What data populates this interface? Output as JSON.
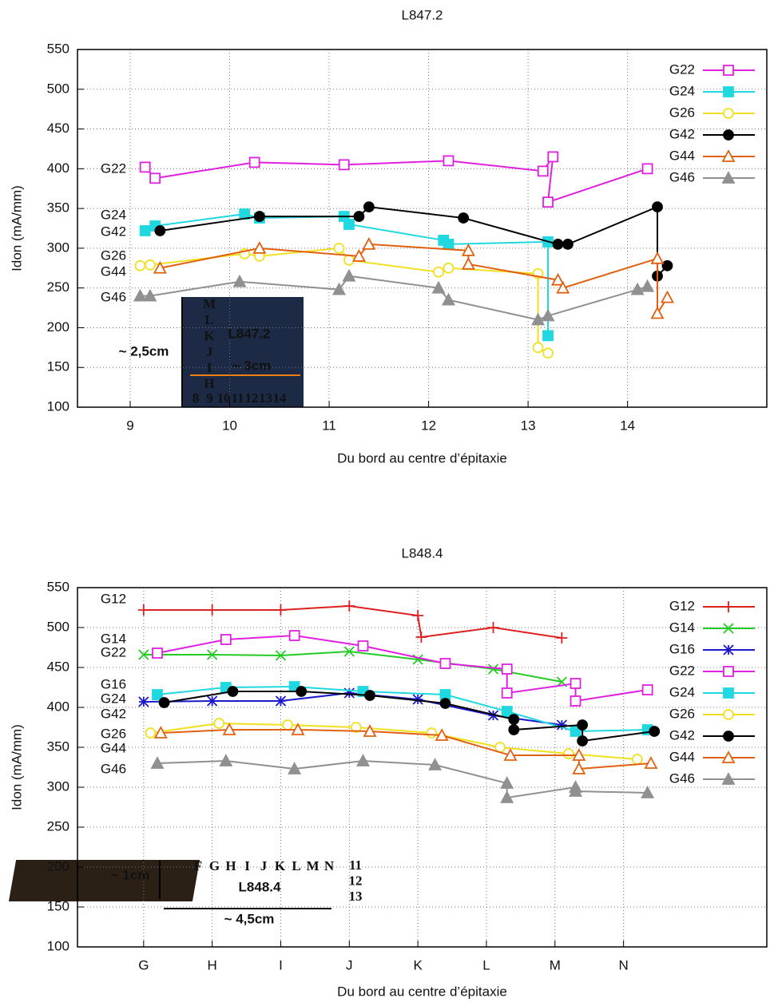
{
  "chart_data": [
    {
      "type": "line",
      "title": "L847.2",
      "x_label": "Du bord au centre d’épitaxie",
      "y_label": "Idon (mA/mm)",
      "xlim": [
        8.47,
        15.4
      ],
      "ylim": [
        100,
        550
      ],
      "xticks": [
        9,
        10,
        11,
        12,
        13,
        14
      ],
      "yticks": [
        100,
        150,
        200,
        250,
        300,
        350,
        400,
        450,
        500,
        550
      ],
      "grid": true,
      "legend": "upper right",
      "annotations": [
        "G22",
        "G24",
        "G42",
        "G26",
        "G44",
        "G46"
      ],
      "inset": {
        "letters": [
          "M",
          "L",
          "K",
          "J",
          "I",
          "H"
        ],
        "numbers": [
          "8",
          "9",
          "10",
          "11",
          "12",
          "13",
          "14"
        ],
        "name": "L847.2",
        "height_label": "~ 2,5cm",
        "width_label": "~ 3cm"
      },
      "series": [
        {
          "name": "G22",
          "color": "#e020e0",
          "marker": "square-open",
          "x": [
            9.15,
            9.25,
            10.25,
            11.15,
            12.2,
            13.15,
            13.25,
            13.2,
            14.2
          ],
          "values": [
            402,
            388,
            408,
            405,
            410,
            397,
            415,
            358,
            400
          ]
        },
        {
          "name": "G24",
          "color": "#20d8e0",
          "marker": "square",
          "x": [
            9.15,
            9.25,
            10.15,
            10.3,
            11.15,
            11.2,
            12.15,
            12.2,
            13.2,
            13.2
          ],
          "values": [
            322,
            328,
            343,
            338,
            340,
            330,
            310,
            305,
            308,
            190
          ]
        },
        {
          "name": "G26",
          "color": "#f0e020",
          "marker": "circle-open",
          "x": [
            9.1,
            9.2,
            10.15,
            10.3,
            11.1,
            11.2,
            12.1,
            12.2,
            13.1,
            13.1,
            13.2
          ],
          "values": [
            278,
            279,
            293,
            290,
            300,
            285,
            270,
            275,
            268,
            175,
            168
          ]
        },
        {
          "name": "G42",
          "color": "#000000",
          "marker": "circle",
          "x": [
            9.3,
            10.3,
            11.3,
            11.4,
            12.35,
            13.3,
            13.4,
            14.3,
            14.3,
            14.4
          ],
          "values": [
            322,
            340,
            340,
            352,
            338,
            305,
            305,
            352,
            265,
            278
          ]
        },
        {
          "name": "G44",
          "color": "#e06010",
          "marker": "triangle-open",
          "x": [
            9.3,
            10.3,
            11.3,
            11.4,
            12.4,
            12.4,
            13.3,
            13.35,
            14.3,
            14.3,
            14.4
          ],
          "values": [
            275,
            300,
            290,
            305,
            297,
            280,
            260,
            250,
            287,
            218,
            238
          ]
        },
        {
          "name": "G46",
          "color": "#909090",
          "marker": "triangle",
          "x": [
            9.1,
            9.2,
            10.1,
            11.1,
            11.2,
            12.1,
            12.2,
            13.1,
            13.2,
            14.1,
            14.2
          ],
          "values": [
            240,
            240,
            258,
            248,
            265,
            250,
            235,
            210,
            215,
            248,
            252
          ]
        }
      ]
    },
    {
      "type": "line",
      "title": "L848.4",
      "x_label": "Du bord au centre d’épitaxie",
      "y_label": "Idon (mA/mm)",
      "xlim": [
        0.035,
        10.09
      ],
      "ylim": [
        100,
        550
      ],
      "xticks": [
        {
          "value": 1,
          "label": "G"
        },
        {
          "value": 2,
          "label": "H"
        },
        {
          "value": 3,
          "label": "I"
        },
        {
          "value": 4,
          "label": "J"
        },
        {
          "value": 5,
          "label": "K"
        },
        {
          "value": 6,
          "label": "L"
        },
        {
          "value": 7,
          "label": "M"
        },
        {
          "value": 8,
          "label": "N"
        }
      ],
      "yticks": [
        100,
        150,
        200,
        250,
        300,
        350,
        400,
        450,
        500,
        550
      ],
      "grid": true,
      "legend": "upper right",
      "annotations": [
        "G12",
        "G14",
        "G22",
        "G16",
        "G24",
        "G42",
        "G26",
        "G44",
        "G46"
      ],
      "inset": {
        "letters": [
          "F",
          "G",
          "H",
          "I",
          "J",
          "K",
          "L",
          "M",
          "N"
        ],
        "numbers": [
          "11",
          "12",
          "13"
        ],
        "name": "L848.4",
        "height_label": "~ 1cm",
        "width_label": "~ 4,5cm"
      },
      "series": [
        {
          "name": "G12",
          "color": "#dd2020",
          "marker": "plus",
          "x": [
            1,
            2,
            3,
            4,
            5,
            5.05,
            6.1,
            7.1
          ],
          "values": [
            522,
            522,
            522,
            527,
            515,
            488,
            500,
            487
          ]
        },
        {
          "name": "G14",
          "color": "#22cc22",
          "marker": "cross",
          "x": [
            1,
            2,
            3,
            4,
            5,
            6.1,
            7.1
          ],
          "values": [
            466,
            466,
            465,
            470,
            460,
            448,
            432
          ]
        },
        {
          "name": "G16",
          "color": "#1a1acc",
          "marker": "star",
          "x": [
            1,
            2,
            3,
            4,
            5,
            6.1,
            7.1
          ],
          "values": [
            407,
            408,
            408,
            418,
            410,
            390,
            378
          ]
        },
        {
          "name": "G22",
          "color": "#e020e0",
          "marker": "square-open",
          "x": [
            1.2,
            2.2,
            3.2,
            4.2,
            5.4,
            6.3,
            6.3,
            7.3,
            7.3,
            8.35
          ],
          "values": [
            468,
            485,
            490,
            477,
            455,
            448,
            418,
            430,
            408,
            422
          ]
        },
        {
          "name": "G24",
          "color": "#20d8e0",
          "marker": "square",
          "x": [
            1.2,
            2.2,
            3.2,
            4.2,
            5.4,
            6.3,
            7.3,
            8.35
          ],
          "values": [
            416,
            425,
            426,
            420,
            416,
            395,
            370,
            372
          ]
        },
        {
          "name": "G26",
          "color": "#f0e020",
          "marker": "circle-open",
          "x": [
            1.1,
            2.1,
            3.1,
            4.1,
            5.2,
            6.2,
            7.2,
            8.2
          ],
          "values": [
            368,
            380,
            378,
            375,
            368,
            350,
            342,
            335
          ]
        },
        {
          "name": "G42",
          "color": "#000000",
          "marker": "circle",
          "x": [
            1.3,
            2.3,
            3.3,
            4.3,
            5.4,
            6.4,
            6.4,
            7.4,
            7.4,
            8.45
          ],
          "values": [
            406,
            420,
            420,
            415,
            405,
            385,
            372,
            378,
            358,
            370
          ]
        },
        {
          "name": "G44",
          "color": "#e06010",
          "marker": "triangle-open",
          "x": [
            1.25,
            2.25,
            3.25,
            4.3,
            5.35,
            6.35,
            7.35,
            7.35,
            8.4
          ],
          "values": [
            368,
            372,
            372,
            370,
            365,
            340,
            340,
            323,
            330
          ]
        },
        {
          "name": "G46",
          "color": "#909090",
          "marker": "triangle",
          "x": [
            1.2,
            2.2,
            3.2,
            4.2,
            5.25,
            6.3,
            6.3,
            7.3,
            7.3,
            8.35
          ],
          "values": [
            330,
            333,
            323,
            333,
            328,
            305,
            287,
            300,
            295,
            293
          ]
        }
      ]
    }
  ]
}
